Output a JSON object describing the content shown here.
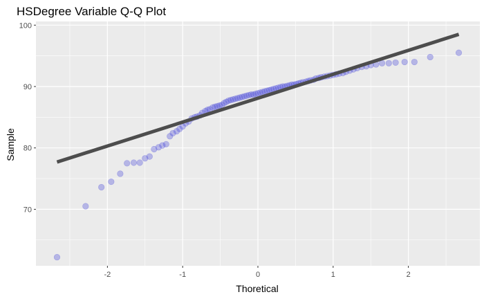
{
  "chart_data": {
    "type": "scatter",
    "title": "HSDegree Variable Q-Q Plot",
    "xlabel": "Thoretical",
    "ylabel": "Sample",
    "xlim": [
      -2.95,
      2.95
    ],
    "ylim": [
      60.8,
      100.6
    ],
    "x_ticks": [
      -2,
      -1,
      0,
      1,
      2
    ],
    "y_ticks": [
      70,
      80,
      90,
      100
    ],
    "grid": true,
    "legend": "none",
    "colors": {
      "panel_background": "#ebebeb",
      "grid": "#ffffff",
      "points": "#4a4adb",
      "reference_line": "#4d4d4d"
    },
    "reference_line": {
      "x": [
        -2.67,
        2.67
      ],
      "y": [
        77.7,
        98.5
      ]
    },
    "points": {
      "x": [
        -2.67,
        -2.29,
        -2.08,
        -1.95,
        -1.83,
        -1.74,
        -1.65,
        -1.57,
        -1.5,
        -1.44,
        -1.38,
        -1.32,
        -1.27,
        -1.22,
        -1.17,
        -1.13,
        -1.08,
        -1.04,
        -1.0,
        -0.96,
        -0.92,
        -0.88,
        -0.84,
        -0.81,
        -0.77,
        -0.74,
        -0.7,
        -0.67,
        -0.64,
        -0.6,
        -0.57,
        -0.54,
        -0.51,
        -0.48,
        -0.45,
        -0.42,
        -0.39,
        -0.36,
        -0.33,
        -0.3,
        -0.27,
        -0.24,
        -0.21,
        -0.18,
        -0.15,
        -0.12,
        -0.09,
        -0.06,
        -0.03,
        0.0,
        0.03,
        0.06,
        0.09,
        0.12,
        0.15,
        0.18,
        0.21,
        0.24,
        0.27,
        0.3,
        0.33,
        0.36,
        0.39,
        0.42,
        0.45,
        0.48,
        0.51,
        0.54,
        0.57,
        0.6,
        0.64,
        0.67,
        0.7,
        0.74,
        0.77,
        0.81,
        0.84,
        0.88,
        0.92,
        0.96,
        1.0,
        1.04,
        1.08,
        1.13,
        1.17,
        1.22,
        1.27,
        1.32,
        1.38,
        1.44,
        1.5,
        1.57,
        1.65,
        1.74,
        1.83,
        1.95,
        2.08,
        2.29,
        2.67
      ],
      "y": [
        62.2,
        70.5,
        73.6,
        74.5,
        75.8,
        77.5,
        77.6,
        77.6,
        78.3,
        78.6,
        79.8,
        80.1,
        80.4,
        80.6,
        81.9,
        82.4,
        82.7,
        83.1,
        83.5,
        84.0,
        84.3,
        84.8,
        85.0,
        85.1,
        85.3,
        85.7,
        86.0,
        86.2,
        86.3,
        86.6,
        86.7,
        86.8,
        86.9,
        87.0,
        87.3,
        87.5,
        87.7,
        87.8,
        87.9,
        88.0,
        88.1,
        88.2,
        88.3,
        88.4,
        88.5,
        88.6,
        88.7,
        88.7,
        88.8,
        88.9,
        89.0,
        89.1,
        89.2,
        89.3,
        89.4,
        89.5,
        89.6,
        89.7,
        89.8,
        89.9,
        90.0,
        90.0,
        90.1,
        90.2,
        90.3,
        90.3,
        90.4,
        90.5,
        90.6,
        90.7,
        90.8,
        90.9,
        91.0,
        91.1,
        91.3,
        91.4,
        91.5,
        91.6,
        91.7,
        91.8,
        91.9,
        92.0,
        92.1,
        92.2,
        92.4,
        92.6,
        92.8,
        93.0,
        93.2,
        93.3,
        93.5,
        93.6,
        93.8,
        93.8,
        93.9,
        94.0,
        94.0,
        94.8,
        95.5
      ]
    }
  }
}
